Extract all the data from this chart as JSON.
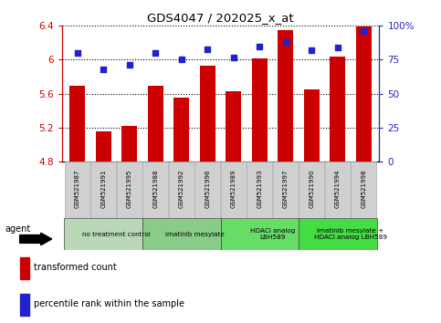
{
  "title": "GDS4047 / 202025_x_at",
  "samples": [
    "GSM521987",
    "GSM521991",
    "GSM521995",
    "GSM521988",
    "GSM521992",
    "GSM521996",
    "GSM521989",
    "GSM521993",
    "GSM521997",
    "GSM521990",
    "GSM521994",
    "GSM521998"
  ],
  "bar_values": [
    5.69,
    5.15,
    5.22,
    5.69,
    5.55,
    5.93,
    5.63,
    6.02,
    6.35,
    5.65,
    6.04,
    6.39
  ],
  "dot_values": [
    80,
    68,
    71,
    80,
    75,
    83,
    77,
    85,
    88,
    82,
    84,
    96
  ],
  "ylim_left": [
    4.8,
    6.4
  ],
  "ylim_right": [
    0,
    100
  ],
  "yticks_left": [
    4.8,
    5.2,
    5.6,
    6.0,
    6.4
  ],
  "yticks_right": [
    0,
    25,
    50,
    75,
    100
  ],
  "ytick_labels_left": [
    "4.8",
    "5.2",
    "5.6",
    "6",
    "6.4"
  ],
  "ytick_labels_right": [
    "0",
    "25",
    "50",
    "75",
    "100%"
  ],
  "bar_color": "#cc0000",
  "dot_color": "#2222cc",
  "agent_groups": [
    {
      "label": "no treatment control",
      "start": 0,
      "end": 3,
      "color": "#b8d8b8"
    },
    {
      "label": "imatinib mesylate",
      "start": 3,
      "end": 6,
      "color": "#88cc88"
    },
    {
      "label": "HDACi analog\nLBH589",
      "start": 6,
      "end": 9,
      "color": "#66dd66"
    },
    {
      "label": "imatinib mesylate +\nHDACi analog LBH589",
      "start": 9,
      "end": 12,
      "color": "#44dd44"
    }
  ],
  "agent_label": "agent",
  "legend_items": [
    {
      "label": "transformed count",
      "color": "#cc0000"
    },
    {
      "label": "percentile rank within the sample",
      "color": "#2222cc"
    }
  ],
  "left_tick_color": "#cc0000",
  "right_tick_color": "#2222cc"
}
